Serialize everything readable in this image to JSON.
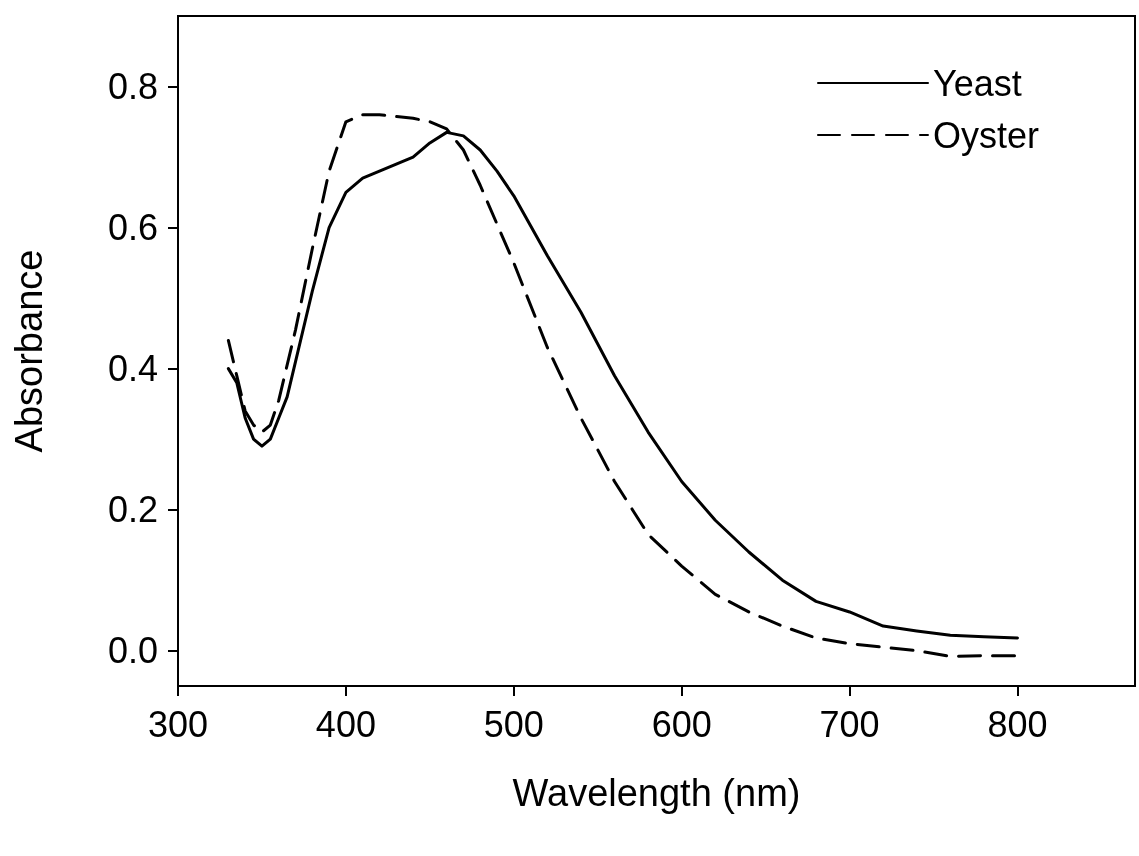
{
  "chart_data": {
    "type": "line",
    "xlabel": "Wavelength (nm)",
    "ylabel": "Absorbance",
    "xlim": [
      300,
      870
    ],
    "xticks": [
      300,
      400,
      500,
      600,
      700,
      800
    ],
    "ylim": [
      -0.05,
      0.9
    ],
    "yticks": [
      {
        "value": 0,
        "label": "0.0"
      },
      {
        "value": 0.2,
        "label": "0.2"
      },
      {
        "value": 0.4,
        "label": "0.4"
      },
      {
        "value": 0.6,
        "label": "0.6"
      },
      {
        "value": 0.8,
        "label": "0.8"
      }
    ],
    "grid": false,
    "legend": "top right",
    "marker": "none",
    "series": [
      {
        "name": "Yeast",
        "color": "#000000",
        "line_style": "solid",
        "x": [
          330,
          335,
          340,
          345,
          350,
          355,
          360,
          365,
          370,
          380,
          390,
          400,
          410,
          420,
          430,
          440,
          450,
          460,
          470,
          480,
          490,
          500,
          520,
          540,
          560,
          580,
          600,
          620,
          640,
          660,
          680,
          700,
          720,
          740,
          760,
          780,
          800
        ],
        "values": [
          0.4,
          0.38,
          0.33,
          0.3,
          0.29,
          0.3,
          0.33,
          0.36,
          0.41,
          0.51,
          0.6,
          0.65,
          0.67,
          0.68,
          0.69,
          0.7,
          0.72,
          0.735,
          0.73,
          0.71,
          0.68,
          0.645,
          0.56,
          0.48,
          0.39,
          0.31,
          0.24,
          0.185,
          0.14,
          0.1,
          0.07,
          0.055,
          0.035,
          0.028,
          0.022,
          0.02,
          0.018
        ]
      },
      {
        "name": "Oyster",
        "color": "#000000",
        "line_style": "dashed",
        "x": [
          330,
          335,
          340,
          345,
          350,
          355,
          360,
          370,
          380,
          390,
          400,
          410,
          420,
          440,
          450,
          460,
          470,
          480,
          490,
          500,
          520,
          540,
          560,
          580,
          600,
          620,
          640,
          660,
          680,
          700,
          720,
          740,
          760,
          780,
          800
        ],
        "values": [
          0.44,
          0.39,
          0.34,
          0.32,
          0.31,
          0.32,
          0.355,
          0.455,
          0.57,
          0.68,
          0.75,
          0.76,
          0.76,
          0.755,
          0.75,
          0.74,
          0.71,
          0.66,
          0.605,
          0.55,
          0.43,
          0.33,
          0.24,
          0.165,
          0.12,
          0.08,
          0.055,
          0.035,
          0.018,
          0.01,
          0.005,
          0.0,
          -0.008,
          -0.007,
          -0.007
        ]
      }
    ]
  }
}
